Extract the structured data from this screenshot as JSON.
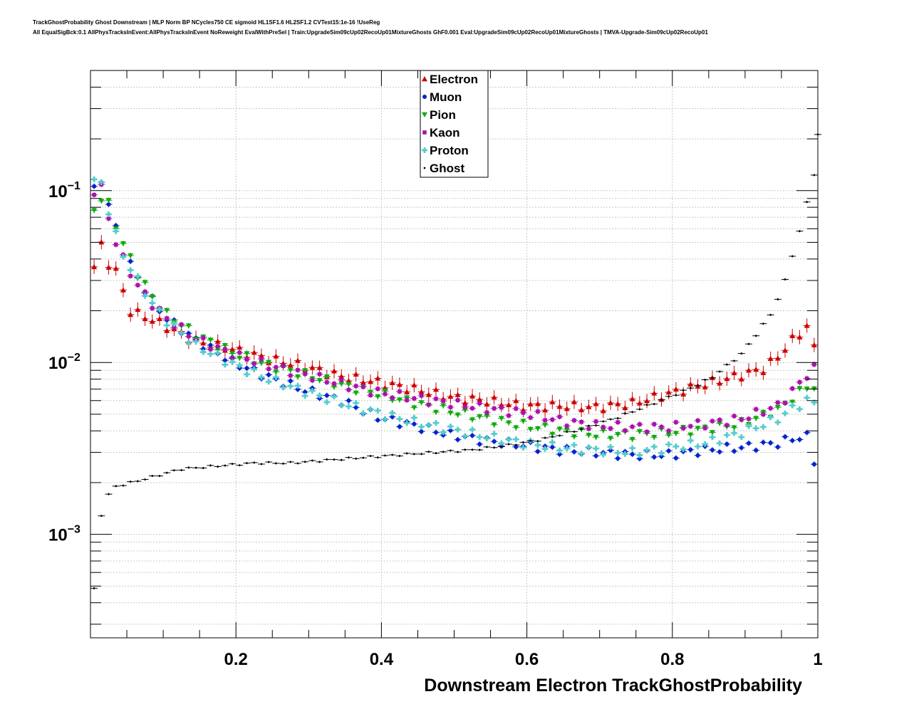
{
  "header": {
    "title_line1": "TrackGhostProbability Ghost Downstream | MLP Norm BP NCycles750 CE sigmoid HL1SF1.6 HL2SF1.2 CVTest15:1e-16 !UseReg",
    "title_line2": "All EqualSigBck:0.1 AllPhysTracksInEvent:AllPhysTracksInEvent NoReweight EvalWithPreSel | Train:UpgradeSim09cUp02RecoUp01MixtureGhosts GhF0.001 Eval:UpgradeSim09cUp02RecoUp01MixtureGhosts | TMVA-Upgrade-Sim09cUp02RecoUp01"
  },
  "chart_data": {
    "type": "scatter",
    "title": "",
    "xlabel": "Downstream Electron TrackGhostProbability",
    "ylabel": "",
    "xlim": [
      0.0,
      1.0
    ],
    "ylim": [
      0.00025,
      0.5
    ],
    "yscale": "log",
    "grid": true,
    "legend_position": "top-center",
    "x_ticks": [
      "0.2",
      "0.4",
      "0.6",
      "0.8",
      "1"
    ],
    "y_ticks": [
      {
        "base": "10",
        "exp": "−1",
        "value": 0.1
      },
      {
        "base": "10",
        "exp": "−2",
        "value": 0.01
      },
      {
        "base": "10",
        "exp": "−3",
        "value": 0.001
      }
    ],
    "x_bin_centers": "0.005 to 0.995 step 0.01",
    "series": [
      {
        "name": "Electron",
        "color": "#cc0000",
        "marker": "triangle-up",
        "keypoints": [
          [
            0.005,
            0.036
          ],
          [
            0.015,
            0.048
          ],
          [
            0.025,
            0.038
          ],
          [
            0.035,
            0.034
          ],
          [
            0.055,
            0.02
          ],
          [
            0.095,
            0.017
          ],
          [
            0.145,
            0.0133
          ],
          [
            0.195,
            0.012
          ],
          [
            0.245,
            0.0105
          ],
          [
            0.295,
            0.0095
          ],
          [
            0.345,
            0.0083
          ],
          [
            0.395,
            0.0077
          ],
          [
            0.445,
            0.007
          ],
          [
            0.495,
            0.0063
          ],
          [
            0.545,
            0.006
          ],
          [
            0.595,
            0.0056
          ],
          [
            0.645,
            0.0056
          ],
          [
            0.695,
            0.0055
          ],
          [
            0.745,
            0.0058
          ],
          [
            0.795,
            0.0066
          ],
          [
            0.845,
            0.0075
          ],
          [
            0.895,
            0.0085
          ],
          [
            0.925,
            0.0092
          ],
          [
            0.945,
            0.0108
          ],
          [
            0.965,
            0.0135
          ],
          [
            0.985,
            0.0162
          ],
          [
            0.995,
            0.0122
          ]
        ]
      },
      {
        "name": "Muon",
        "color": "#0022cc",
        "marker": "circle",
        "keypoints": [
          [
            0.005,
            0.1
          ],
          [
            0.015,
            0.117
          ],
          [
            0.025,
            0.083
          ],
          [
            0.035,
            0.06
          ],
          [
            0.045,
            0.045
          ],
          [
            0.065,
            0.031
          ],
          [
            0.085,
            0.023
          ],
          [
            0.105,
            0.018
          ],
          [
            0.145,
            0.0135
          ],
          [
            0.195,
            0.0101
          ],
          [
            0.245,
            0.0082
          ],
          [
            0.295,
            0.0069
          ],
          [
            0.345,
            0.006
          ],
          [
            0.395,
            0.0048
          ],
          [
            0.445,
            0.0043
          ],
          [
            0.495,
            0.0038
          ],
          [
            0.545,
            0.0035
          ],
          [
            0.595,
            0.0033
          ],
          [
            0.645,
            0.0031
          ],
          [
            0.695,
            0.003
          ],
          [
            0.745,
            0.0029
          ],
          [
            0.795,
            0.0029
          ],
          [
            0.845,
            0.0031
          ],
          [
            0.895,
            0.0032
          ],
          [
            0.945,
            0.0034
          ],
          [
            0.965,
            0.0036
          ],
          [
            0.985,
            0.0037
          ],
          [
            0.995,
            0.0027
          ]
        ]
      },
      {
        "name": "Pion",
        "color": "#11aa11",
        "marker": "triangle-down",
        "keypoints": [
          [
            0.005,
            0.078
          ],
          [
            0.015,
            0.09
          ],
          [
            0.025,
            0.083
          ],
          [
            0.035,
            0.063
          ],
          [
            0.045,
            0.049
          ],
          [
            0.065,
            0.033
          ],
          [
            0.085,
            0.024
          ],
          [
            0.105,
            0.019
          ],
          [
            0.145,
            0.0145
          ],
          [
            0.195,
            0.0114
          ],
          [
            0.245,
            0.0096
          ],
          [
            0.295,
            0.0085
          ],
          [
            0.345,
            0.0074
          ],
          [
            0.395,
            0.0066
          ],
          [
            0.445,
            0.0058
          ],
          [
            0.495,
            0.0052
          ],
          [
            0.545,
            0.0047
          ],
          [
            0.595,
            0.0043
          ],
          [
            0.645,
            0.004
          ],
          [
            0.695,
            0.0038
          ],
          [
            0.745,
            0.0038
          ],
          [
            0.795,
            0.0039
          ],
          [
            0.845,
            0.0041
          ],
          [
            0.895,
            0.0044
          ],
          [
            0.945,
            0.0053
          ],
          [
            0.965,
            0.0062
          ],
          [
            0.985,
            0.0072
          ],
          [
            0.995,
            0.0072
          ]
        ]
      },
      {
        "name": "Kaon",
        "color": "#aa11aa",
        "marker": "square",
        "keypoints": [
          [
            0.005,
            0.1
          ],
          [
            0.015,
            0.103
          ],
          [
            0.025,
            0.07
          ],
          [
            0.035,
            0.05
          ],
          [
            0.045,
            0.04
          ],
          [
            0.065,
            0.028
          ],
          [
            0.085,
            0.022
          ],
          [
            0.105,
            0.018
          ],
          [
            0.145,
            0.0137
          ],
          [
            0.195,
            0.0112
          ],
          [
            0.245,
            0.0096
          ],
          [
            0.295,
            0.0085
          ],
          [
            0.345,
            0.0075
          ],
          [
            0.395,
            0.0067
          ],
          [
            0.445,
            0.0062
          ],
          [
            0.495,
            0.0058
          ],
          [
            0.545,
            0.0054
          ],
          [
            0.595,
            0.0051
          ],
          [
            0.645,
            0.0046
          ],
          [
            0.695,
            0.0043
          ],
          [
            0.745,
            0.0042
          ],
          [
            0.795,
            0.0042
          ],
          [
            0.845,
            0.0044
          ],
          [
            0.895,
            0.0047
          ],
          [
            0.945,
            0.0056
          ],
          [
            0.965,
            0.0068
          ],
          [
            0.985,
            0.0085
          ],
          [
            0.995,
            0.0092
          ]
        ]
      },
      {
        "name": "Proton",
        "color": "#55cccc",
        "marker": "plus",
        "keypoints": [
          [
            0.005,
            0.113
          ],
          [
            0.015,
            0.11
          ],
          [
            0.025,
            0.077
          ],
          [
            0.035,
            0.055
          ],
          [
            0.045,
            0.042
          ],
          [
            0.065,
            0.03
          ],
          [
            0.085,
            0.022
          ],
          [
            0.105,
            0.0175
          ],
          [
            0.145,
            0.0125
          ],
          [
            0.195,
            0.0098
          ],
          [
            0.245,
            0.008
          ],
          [
            0.295,
            0.0068
          ],
          [
            0.345,
            0.0058
          ],
          [
            0.395,
            0.0051
          ],
          [
            0.445,
            0.0045
          ],
          [
            0.495,
            0.0041
          ],
          [
            0.545,
            0.0037
          ],
          [
            0.595,
            0.0034
          ],
          [
            0.645,
            0.0032
          ],
          [
            0.695,
            0.0031
          ],
          [
            0.745,
            0.003
          ],
          [
            0.795,
            0.0032
          ],
          [
            0.845,
            0.0034
          ],
          [
            0.895,
            0.0039
          ],
          [
            0.945,
            0.0047
          ],
          [
            0.965,
            0.0054
          ],
          [
            0.985,
            0.006
          ],
          [
            0.995,
            0.0058
          ]
        ]
      },
      {
        "name": "Ghost",
        "color": "#000000",
        "marker": "cross",
        "keypoints": [
          [
            0.005,
            0.00048
          ],
          [
            0.015,
            0.0013
          ],
          [
            0.025,
            0.0017
          ],
          [
            0.035,
            0.0019
          ],
          [
            0.075,
            0.0021
          ],
          [
            0.125,
            0.0024
          ],
          [
            0.175,
            0.0025
          ],
          [
            0.225,
            0.0026
          ],
          [
            0.275,
            0.0026
          ],
          [
            0.325,
            0.0027
          ],
          [
            0.375,
            0.0028
          ],
          [
            0.425,
            0.0029
          ],
          [
            0.475,
            0.003
          ],
          [
            0.525,
            0.0031
          ],
          [
            0.575,
            0.0033
          ],
          [
            0.625,
            0.0036
          ],
          [
            0.675,
            0.0041
          ],
          [
            0.725,
            0.0048
          ],
          [
            0.775,
            0.0058
          ],
          [
            0.825,
            0.0071
          ],
          [
            0.855,
            0.0082
          ],
          [
            0.875,
            0.0096
          ],
          [
            0.895,
            0.0112
          ],
          [
            0.915,
            0.0145
          ],
          [
            0.935,
            0.019
          ],
          [
            0.945,
            0.0235
          ],
          [
            0.955,
            0.03
          ],
          [
            0.965,
            0.042
          ],
          [
            0.975,
            0.058
          ],
          [
            0.985,
            0.085
          ],
          [
            0.995,
            0.125
          ],
          [
            1.0,
            0.21
          ]
        ]
      }
    ]
  }
}
